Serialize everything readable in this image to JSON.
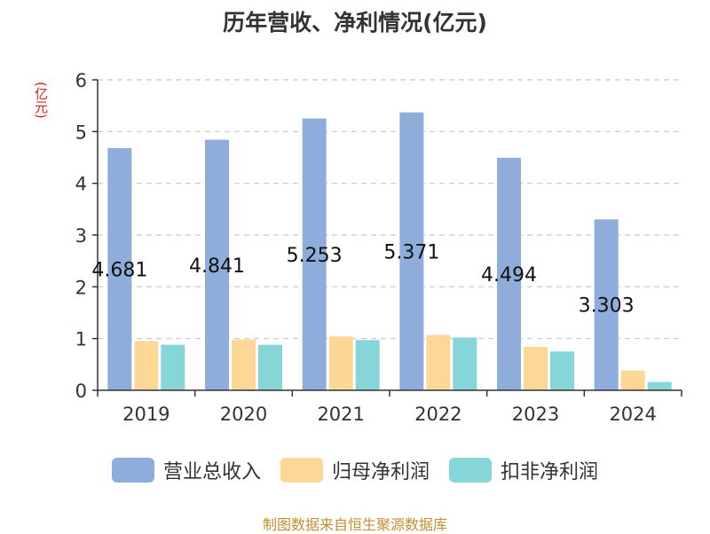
{
  "chart_data": {
    "type": "bar",
    "title": "历年营收、净利情况(亿元)",
    "unit_label": "(亿元)",
    "categories": [
      "2019",
      "2020",
      "2021",
      "2022",
      "2023",
      "2024"
    ],
    "series": [
      {
        "name": "营业总收入",
        "color": "#8eaddb",
        "values": [
          4.681,
          4.841,
          5.253,
          5.371,
          4.494,
          3.303
        ],
        "labels": [
          "4.681",
          "4.841",
          "5.253",
          "5.371",
          "4.494",
          "3.303"
        ]
      },
      {
        "name": "归母净利润",
        "color": "#fdd795",
        "values": [
          0.95,
          0.98,
          1.04,
          1.07,
          0.84,
          0.38
        ]
      },
      {
        "name": "扣非净利润",
        "color": "#86d5d8",
        "values": [
          0.88,
          0.88,
          0.97,
          1.02,
          0.75,
          0.16
        ]
      }
    ],
    "yticks": [
      "0",
      "1",
      "2",
      "3",
      "4",
      "5",
      "6"
    ],
    "ylim": [
      0,
      6
    ],
    "grid": true,
    "legend": "bottom"
  },
  "source_note": "制图数据来自恒生聚源数据库"
}
